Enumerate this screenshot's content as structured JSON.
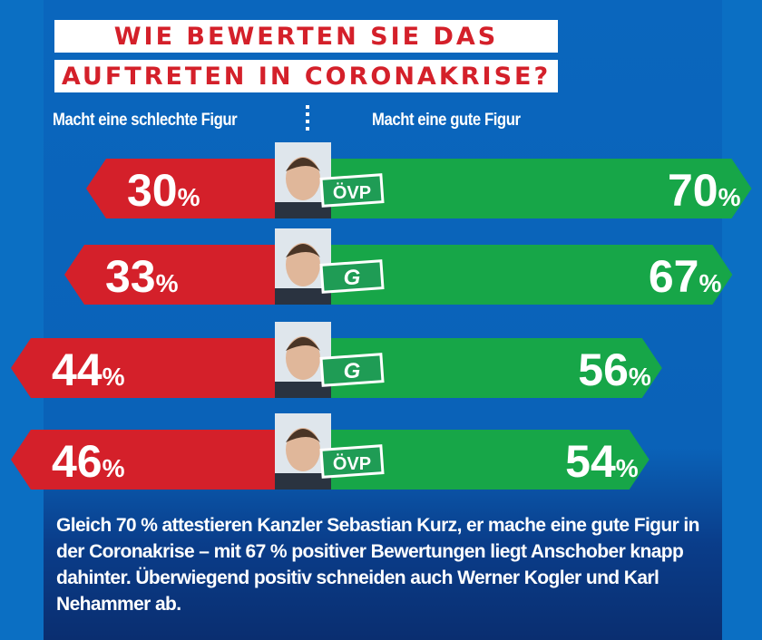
{
  "title_lines": [
    "WIE BEWERTEN SIE DAS",
    "AUFTRETEN IN CORONAKRISE?"
  ],
  "colors": {
    "negative": "#d4202a",
    "positive": "#17a648",
    "background": "#0b6fc3"
  },
  "chart_data": {
    "type": "bar",
    "orientation": "horizontal-diverging",
    "title": "WIE BEWERTEN SIE DAS AUFTRETEN IN CORONAKRISE?",
    "legend": [
      "Macht eine schlechte Figur",
      "Macht eine gute Figur"
    ],
    "categories": [
      {
        "party": "ÖVP",
        "party_icon": "party-logo-oevp"
      },
      {
        "party": "G",
        "party_icon": "party-logo-gruene"
      },
      {
        "party": "G",
        "party_icon": "party-logo-gruene"
      },
      {
        "party": "ÖVP",
        "party_icon": "party-logo-oevp"
      }
    ],
    "unit": "%",
    "series": [
      {
        "name": "Macht eine schlechte Figur",
        "values": [
          30,
          33,
          44,
          46
        ]
      },
      {
        "name": "Macht eine gute Figur",
        "values": [
          70,
          67,
          56,
          54
        ]
      }
    ]
  },
  "summary": "Gleich 70 % attestieren Kanzler Sebastian Kurz, er mache eine gute Figur in der Coronakrise – mit 67 % positiver Bewertungen liegt Anschober knapp dahinter. Überwiegend positiv schneiden auch Werner Kogler und Karl Nehammer ab."
}
